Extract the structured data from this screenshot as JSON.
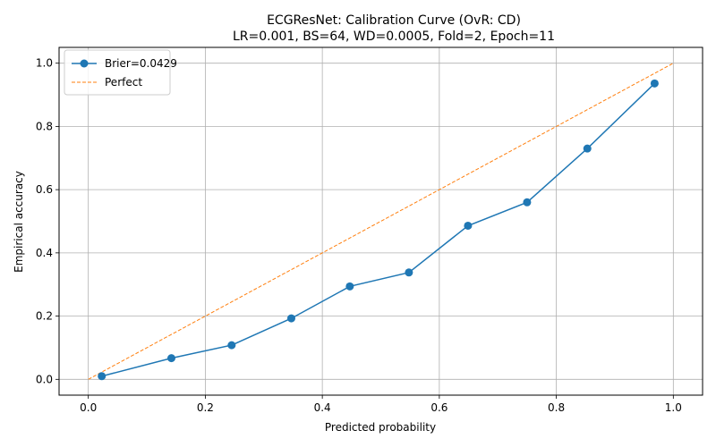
{
  "chart_data": {
    "type": "line",
    "title": "ECGResNet: Calibration Curve (OvR: CD)",
    "subtitle": "LR=0.001, BS=64, WD=0.0005, Fold=2, Epoch=11",
    "xlabel": "Predicted probability",
    "ylabel": "Empirical accuracy",
    "xlim": [
      -0.05,
      1.05
    ],
    "ylim": [
      -0.05,
      1.05
    ],
    "xticks": [
      "0.0",
      "0.2",
      "0.4",
      "0.6",
      "0.8",
      "1.0"
    ],
    "yticks": [
      "0.0",
      "0.2",
      "0.4",
      "0.6",
      "0.8",
      "1.0"
    ],
    "grid": true,
    "legend_position": "top-left",
    "series": [
      {
        "name": "Brier=0.0429",
        "color": "#1f77b4",
        "style": "solid-with-markers",
        "x": [
          0.023,
          0.142,
          0.245,
          0.347,
          0.447,
          0.548,
          0.649,
          0.75,
          0.853,
          0.968
        ],
        "y": [
          0.01,
          0.067,
          0.108,
          0.193,
          0.294,
          0.338,
          0.486,
          0.56,
          0.73,
          0.936
        ]
      },
      {
        "name": "Perfect",
        "color": "#ff7f0e",
        "style": "dashed",
        "x": [
          0.0,
          1.0
        ],
        "y": [
          0.0,
          1.0
        ]
      }
    ]
  }
}
